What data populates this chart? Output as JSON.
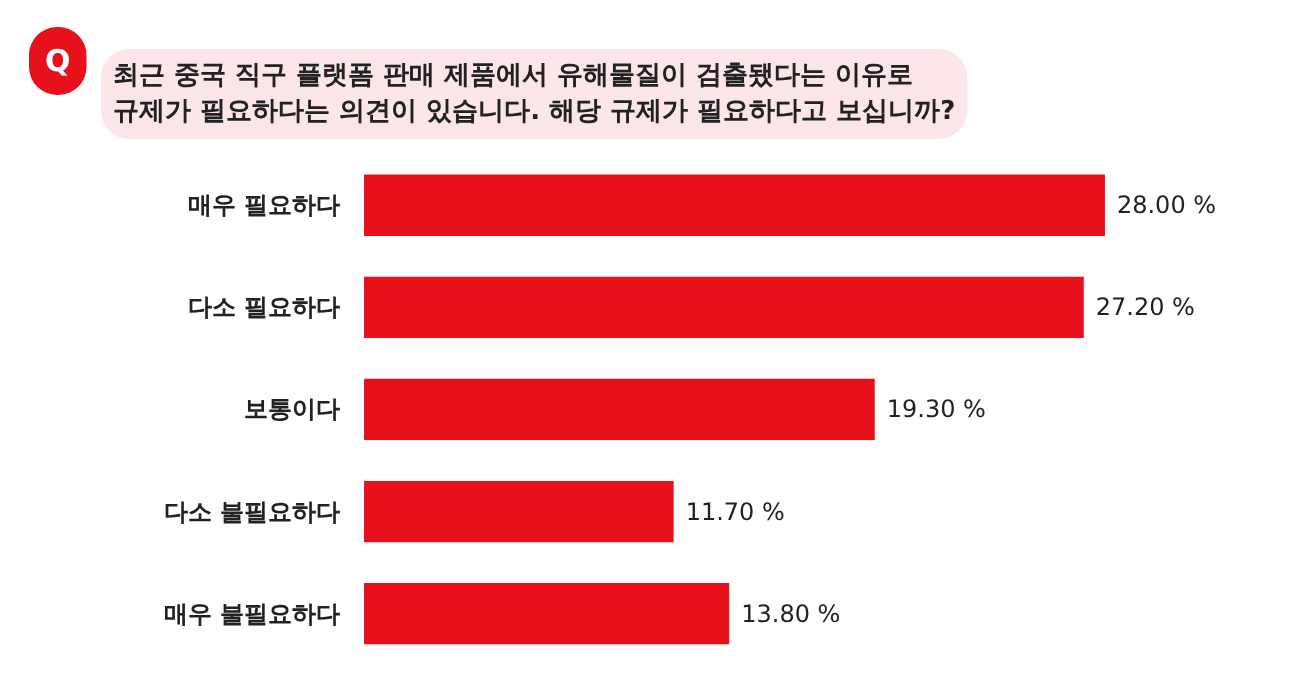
{
  "chart_data": {
    "type": "bar",
    "orientation": "horizontal",
    "title": "최근 중국 직구 플랫폼 판매 제품에서 유해물질이 검출됐다는 이유로\n규제가 필요하다는 의견이 있습니다. 해당 규제가 필요하다고 보십니까?",
    "categories": [
      "매우 필요하다",
      "다소 필요하다",
      "보통이다",
      "다소 불필요하다",
      "매우 불필요하다"
    ],
    "values": [
      28.0,
      27.2,
      19.3,
      11.7,
      13.8
    ],
    "value_labels": [
      "28.00 %",
      "27.20 %",
      "19.30 %",
      "11.70 %",
      "13.80 %"
    ],
    "color": "#e8101a",
    "annotations": [
      "Q"
    ],
    "grid": false
  }
}
